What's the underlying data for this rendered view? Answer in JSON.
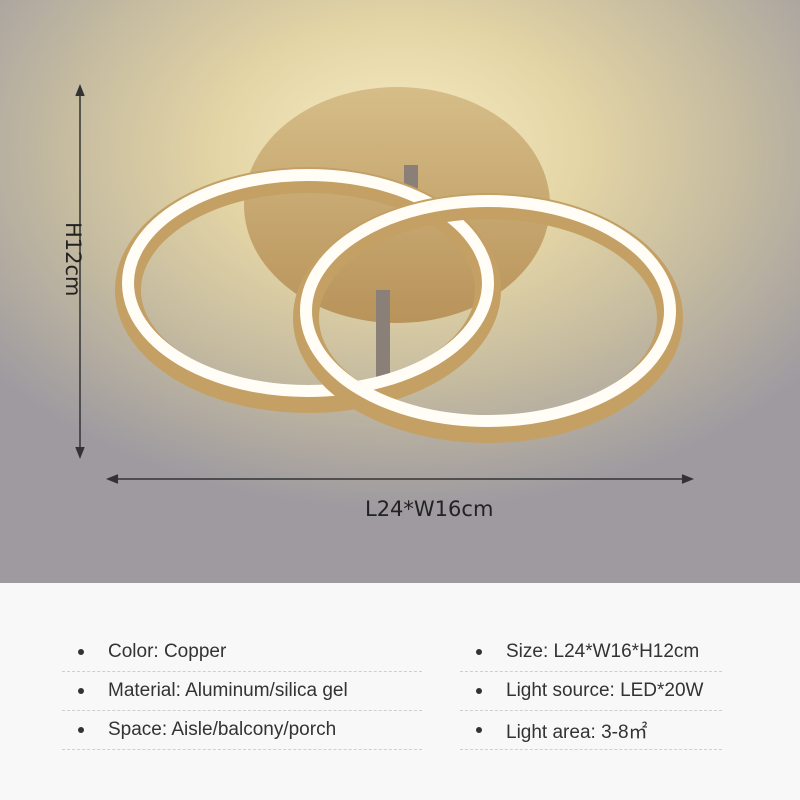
{
  "dimensions": {
    "width_label": "L24*W16cm",
    "height_label": "H12cm"
  },
  "specs": {
    "left": [
      "Color: Copper",
      "Material: Aluminum/silica gel",
      "Space: Aisle/balcony/porch"
    ],
    "right": [
      "Size: L24*W16*H12cm",
      "Light source: LED*20W",
      "Light area: 3-8㎡"
    ]
  },
  "colors": {
    "ring_metal": "#c9a96a",
    "ring_light": "#fffdf6",
    "background_top": "#f6ecc4",
    "background_bottom": "#f8f8f8"
  }
}
